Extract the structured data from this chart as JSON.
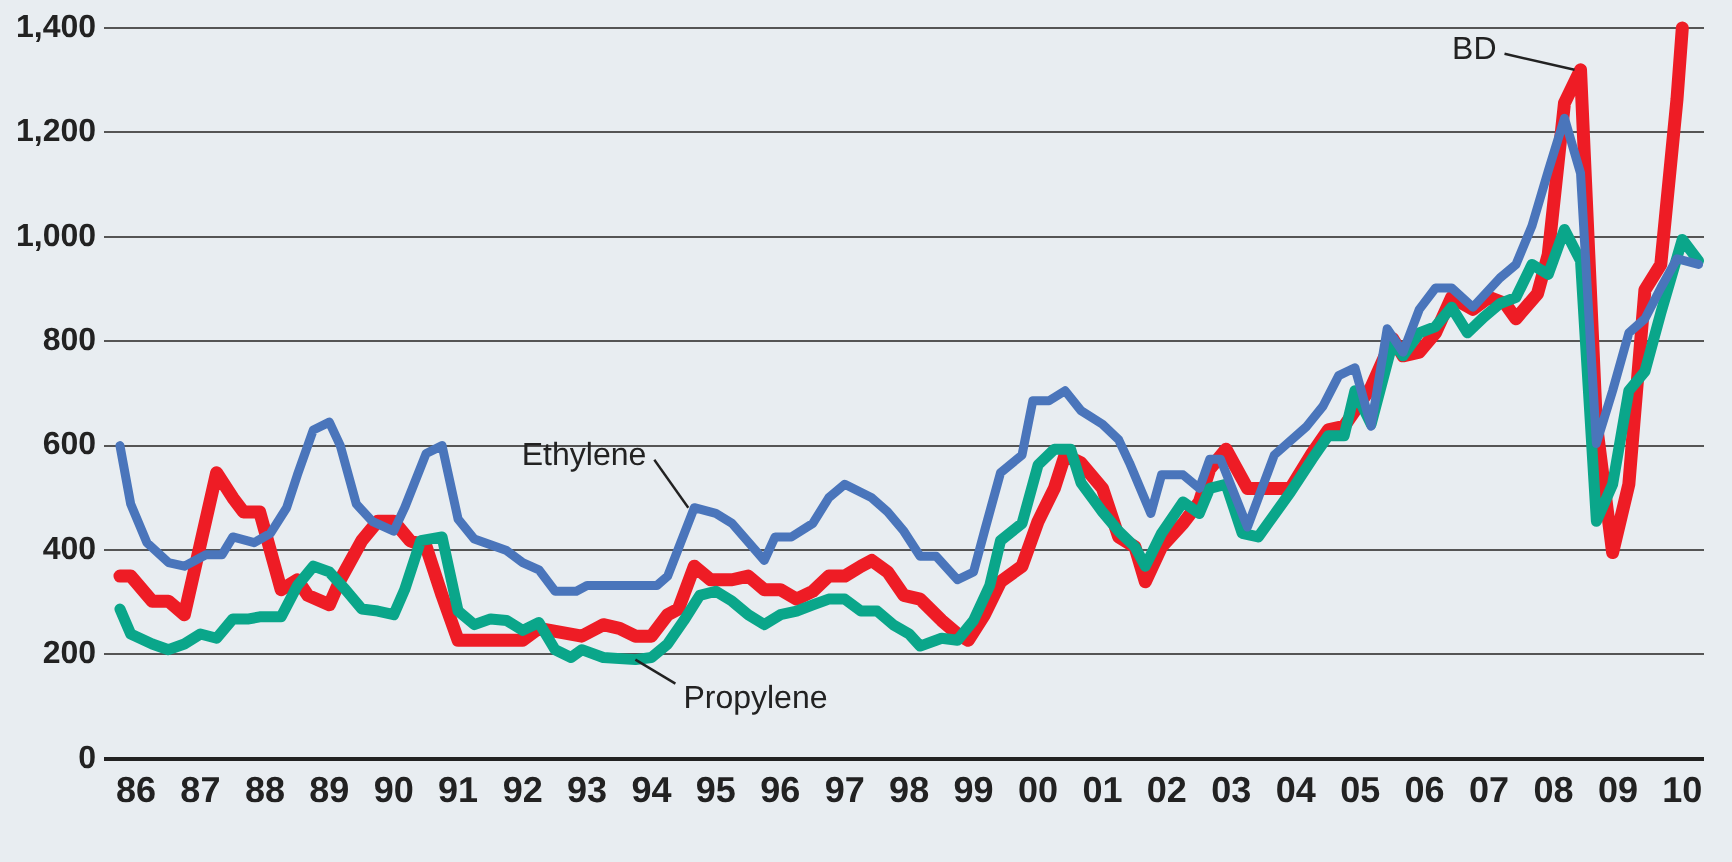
{
  "chart_data": {
    "type": "line",
    "xlim": [
      "1986-01",
      "2010-11"
    ],
    "ylim": [
      0,
      1400
    ],
    "xticks": [
      {
        "value": "1986-07",
        "label": "86"
      },
      {
        "value": "1987-07",
        "label": "87"
      },
      {
        "value": "1988-07",
        "label": "88"
      },
      {
        "value": "1989-07",
        "label": "89"
      },
      {
        "value": "1990-07",
        "label": "90"
      },
      {
        "value": "1991-07",
        "label": "91"
      },
      {
        "value": "1992-07",
        "label": "92"
      },
      {
        "value": "1993-07",
        "label": "93"
      },
      {
        "value": "1994-07",
        "label": "94"
      },
      {
        "value": "1995-07",
        "label": "95"
      },
      {
        "value": "1996-07",
        "label": "96"
      },
      {
        "value": "1997-07",
        "label": "97"
      },
      {
        "value": "1998-07",
        "label": "98"
      },
      {
        "value": "1999-07",
        "label": "99"
      },
      {
        "value": "2000-07",
        "label": "00"
      },
      {
        "value": "2001-07",
        "label": "01"
      },
      {
        "value": "2002-07",
        "label": "02"
      },
      {
        "value": "2003-07",
        "label": "03"
      },
      {
        "value": "2004-07",
        "label": "04"
      },
      {
        "value": "2005-07",
        "label": "05"
      },
      {
        "value": "2006-07",
        "label": "06"
      },
      {
        "value": "2007-07",
        "label": "07"
      },
      {
        "value": "2008-07",
        "label": "08"
      },
      {
        "value": "2009-07",
        "label": "09"
      },
      {
        "value": "2010-07",
        "label": "10"
      }
    ],
    "yticks": [
      0,
      200,
      400,
      600,
      800,
      {
        "value": 1000,
        "label": "1,000"
      },
      {
        "value": 1200,
        "label": "1,200"
      },
      {
        "value": 1400,
        "label": "1,400"
      }
    ],
    "grid": "y",
    "legend": false,
    "marker": "none",
    "line_style": "solid",
    "series": [
      {
        "name": "BD",
        "color": "#ee1c25",
        "x": [
          "1986-04",
          "1986-06",
          "1986-10",
          "1987-01",
          "1987-04",
          "1987-10",
          "1988-01",
          "1988-03",
          "1988-06",
          "1988-10",
          "1989-01",
          "1989-03",
          "1989-07",
          "1989-09",
          "1990-01",
          "1990-04",
          "1990-07",
          "1990-10",
          "1991-01",
          "1991-04",
          "1991-07",
          "1992-07",
          "1992-10",
          "1993-06",
          "1993-10",
          "1994-01",
          "1994-04",
          "1994-07",
          "1994-10",
          "1994-12",
          "1995-03",
          "1995-06",
          "1995-10",
          "1996-01",
          "1996-04",
          "1996-07",
          "1996-10",
          "1997-01",
          "1997-04",
          "1997-07",
          "1997-10",
          "1997-12",
          "1998-03",
          "1998-06",
          "1998-09",
          "1999-01",
          "1999-04",
          "1999-06",
          "1999-09",
          "1999-12",
          "2000-04",
          "2000-07",
          "2000-10",
          "2000-12",
          "2001-03",
          "2001-07",
          "2001-10",
          "2002-01",
          "2002-03",
          "2002-06",
          "2002-10",
          "2003-01",
          "2003-03",
          "2003-06",
          "2003-10",
          "2004-06",
          "2004-10",
          "2005-01",
          "2005-04",
          "2005-09",
          "2006-01",
          "2006-03",
          "2006-06",
          "2006-09",
          "2006-12",
          "2007-04",
          "2007-07",
          "2007-10",
          "2007-12",
          "2008-04",
          "2008-06",
          "2008-09",
          "2008-12",
          "2009-03",
          "2009-06",
          "2009-09",
          "2009-12",
          "2010-03",
          "2010-06",
          "2010-07"
        ],
        "values": [
          350,
          350,
          302,
          302,
          276,
          548,
          500,
          473,
          473,
          324,
          343,
          313,
          295,
          343,
          418,
          455,
          455,
          418,
          406,
          313,
          227,
          227,
          250,
          235,
          257,
          250,
          235,
          235,
          276,
          287,
          369,
          343,
          343,
          350,
          324,
          324,
          306,
          321,
          350,
          350,
          369,
          380,
          358,
          313,
          306,
          265,
          239,
          227,
          276,
          339,
          369,
          455,
          518,
          582,
          567,
          518,
          425,
          406,
          339,
          406,
          451,
          492,
          555,
          593,
          518,
          518,
          585,
          630,
          637,
          712,
          805,
          772,
          779,
          816,
          884,
          861,
          884,
          872,
          843,
          891,
          966,
          1256,
          1320,
          641,
          395,
          526,
          898,
          947,
          1264,
          1400
        ]
      },
      {
        "name": "Propylene",
        "color": "#0aa68a",
        "x": [
          "1986-04",
          "1986-06",
          "1986-10",
          "1987-01",
          "1987-04",
          "1987-07",
          "1987-10",
          "1988-01",
          "1988-04",
          "1988-06",
          "1988-10",
          "1989-01",
          "1989-04",
          "1989-07",
          "1989-10",
          "1990-01",
          "1990-04",
          "1990-07",
          "1990-09",
          "1990-12",
          "1991-04",
          "1991-07",
          "1991-10",
          "1992-01",
          "1992-04",
          "1992-07",
          "1992-10",
          "1993-01",
          "1993-04",
          "1993-06",
          "1993-10",
          "1994-04",
          "1994-07",
          "1994-10",
          "1995-01",
          "1995-04",
          "1995-07",
          "1995-10",
          "1996-01",
          "1996-04",
          "1996-07",
          "1996-10",
          "1997-01",
          "1997-04",
          "1997-07",
          "1997-10",
          "1998-01",
          "1998-04",
          "1998-07",
          "1998-09",
          "1999-01",
          "1999-04",
          "1999-07",
          "1999-10",
          "1999-12",
          "2000-04",
          "2000-07",
          "2000-10",
          "2001-01",
          "2001-03",
          "2001-07",
          "2001-10",
          "2002-01",
          "2002-03",
          "2002-06",
          "2002-10",
          "2003-01",
          "2003-03",
          "2003-06",
          "2003-09",
          "2003-12",
          "2004-06",
          "2004-10",
          "2005-01",
          "2005-04",
          "2005-06",
          "2005-09",
          "2006-01",
          "2006-03",
          "2006-06",
          "2006-09",
          "2006-12",
          "2007-03",
          "2007-06",
          "2007-09",
          "2007-12",
          "2008-03",
          "2008-06",
          "2008-09",
          "2008-12",
          "2009-03",
          "2009-06",
          "2009-09",
          "2009-12",
          "2010-03",
          "2010-07",
          "2010-10"
        ],
        "values": [
          287,
          239,
          220,
          209,
          220,
          239,
          231,
          268,
          268,
          272,
          272,
          332,
          369,
          358,
          324,
          287,
          283,
          276,
          324,
          418,
          425,
          283,
          257,
          268,
          265,
          246,
          261,
          209,
          194,
          209,
          194,
          190,
          194,
          220,
          265,
          313,
          321,
          302,
          276,
          257,
          276,
          283,
          295,
          306,
          306,
          283,
          283,
          257,
          239,
          216,
          231,
          227,
          265,
          332,
          418,
          451,
          563,
          593,
          593,
          529,
          473,
          436,
          406,
          369,
          432,
          492,
          470,
          518,
          526,
          432,
          425,
          511,
          574,
          619,
          619,
          705,
          641,
          798,
          772,
          816,
          828,
          865,
          816,
          846,
          872,
          884,
          947,
          928,
          1014,
          954,
          455,
          526,
          705,
          742,
          854,
          995,
          954
        ]
      },
      {
        "name": "Ethylene",
        "color": "#4a75bb",
        "x": [
          "1986-04",
          "1986-06",
          "1986-09",
          "1987-01",
          "1987-04",
          "1987-08",
          "1987-11",
          "1988-01",
          "1988-05",
          "1988-08",
          "1988-11",
          "1989-01",
          "1989-04",
          "1989-07",
          "1989-09",
          "1989-12",
          "1990-03",
          "1990-07",
          "1990-09",
          "1991-01",
          "1991-04",
          "1991-07",
          "1991-10",
          "1992-01",
          "1992-04",
          "1992-07",
          "1992-10",
          "1993-01",
          "1993-05",
          "1993-07",
          "1994-08",
          "1994-10",
          "1995-03",
          "1995-07",
          "1995-10",
          "1996-04",
          "1996-06",
          "1996-09",
          "1997-01",
          "1997-04",
          "1997-07",
          "1997-12",
          "1998-03",
          "1998-06",
          "1998-09",
          "1998-12",
          "1999-04",
          "1999-07",
          "1999-09",
          "1999-12",
          "2000-04",
          "2000-06",
          "2000-09",
          "2000-12",
          "2001-03",
          "2001-07",
          "2001-10",
          "2001-12",
          "2002-04",
          "2002-06",
          "2002-10",
          "2003-01",
          "2003-03",
          "2003-05",
          "2003-10",
          "2004-03",
          "2004-09",
          "2004-12",
          "2005-03",
          "2005-06",
          "2005-09",
          "2005-12",
          "2006-03",
          "2006-06",
          "2006-09",
          "2006-12",
          "2007-04",
          "2007-09",
          "2007-12",
          "2008-03",
          "2008-06",
          "2008-09",
          "2008-12",
          "2009-03",
          "2009-06",
          "2009-09",
          "2009-12",
          "2010-03",
          "2010-06",
          "2010-10"
        ],
        "values": [
          600,
          488,
          414,
          376,
          369,
          391,
          391,
          425,
          414,
          432,
          481,
          544,
          630,
          645,
          600,
          488,
          455,
          436,
          481,
          585,
          600,
          459,
          421,
          410,
          399,
          376,
          362,
          321,
          321,
          332,
          332,
          350,
          481,
          470,
          451,
          380,
          425,
          425,
          451,
          500,
          526,
          500,
          473,
          436,
          388,
          388,
          343,
          358,
          436,
          548,
          582,
          686,
          686,
          705,
          667,
          641,
          611,
          567,
          470,
          544,
          544,
          518,
          574,
          574,
          444,
          582,
          637,
          675,
          734,
          749,
          637,
          824,
          779,
          861,
          902,
          902,
          865,
          921,
          947,
          1021,
          1126,
          1227,
          1122,
          604,
          705,
          816,
          843,
          902,
          958,
          947
        ]
      }
    ]
  }
}
